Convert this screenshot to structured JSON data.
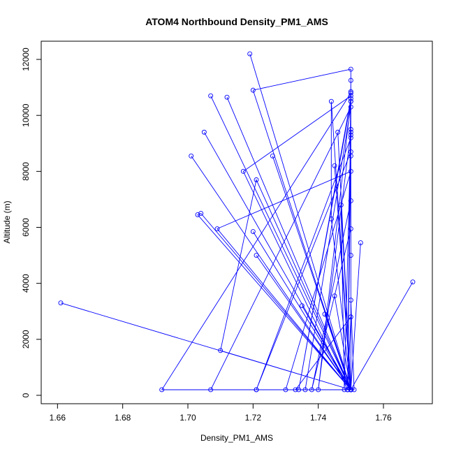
{
  "chart_data": {
    "type": "line",
    "title": "ATOM4 Northbound Density_PM1_AMS",
    "xlabel": "Density_PM1_AMS",
    "ylabel": "Altitude (m)",
    "xlim": [
      1.655,
      1.775
    ],
    "ylim": [
      -300,
      12650
    ],
    "xticks": [
      1.66,
      1.68,
      1.7,
      1.72,
      1.74,
      1.76
    ],
    "xtick_labels": [
      "1.66",
      "1.68",
      "1.70",
      "1.72",
      "1.74",
      "1.76"
    ],
    "yticks": [
      0,
      2000,
      4000,
      6000,
      8000,
      10000,
      12000
    ],
    "ytick_labels": [
      "0",
      "2000",
      "4000",
      "6000",
      "8000",
      "10000",
      "12000"
    ],
    "grid": false,
    "series_color": "#0000ff",
    "series": [
      {
        "x": [
          1.75,
          1.75,
          1.749,
          1.75,
          1.75,
          1.719,
          1.75,
          1.661,
          1.75,
          1.745,
          1.75,
          1.692,
          1.75,
          1.75,
          1.705,
          1.75,
          1.75,
          1.74,
          1.75,
          1.75,
          1.704,
          1.703,
          1.75,
          1.701,
          1.75,
          1.75,
          1.75,
          1.721,
          1.71,
          1.75,
          1.75,
          1.717,
          1.749,
          1.75,
          1.75,
          1.75,
          1.738,
          1.75,
          1.75,
          1.721,
          1.75,
          1.747,
          1.748,
          1.75,
          1.75,
          1.745,
          1.75,
          1.712,
          1.75,
          1.742,
          1.75,
          1.735,
          1.75,
          1.707,
          1.75,
          1.707,
          1.75,
          1.736,
          1.75,
          1.709,
          1.75,
          1.73,
          1.75,
          1.75,
          1.734,
          1.75,
          1.749,
          1.75,
          1.721,
          1.721,
          1.75,
          1.75,
          1.744,
          1.744,
          1.75,
          1.753,
          1.75,
          1.72,
          1.75,
          1.769,
          1.75,
          1.751,
          1.75,
          1.75,
          1.75,
          1.72,
          1.75,
          1.749,
          1.75,
          1.733,
          1.75,
          1.726,
          1.75,
          1.75,
          1.75,
          1.746
        ],
        "y": [
          200,
          11250,
          200,
          10850,
          200,
          12200,
          200,
          3300,
          200,
          3550,
          200,
          200,
          10800,
          200,
          9400,
          200,
          10500,
          200,
          9400,
          200,
          6500,
          6450,
          200,
          8550,
          200,
          9300,
          200,
          7700,
          1600,
          200,
          10700,
          8000,
          200,
          8550,
          200,
          6950,
          200,
          5950,
          200,
          5000,
          200,
          6800,
          200,
          9500,
          200,
          8200,
          200,
          10650,
          200,
          2900,
          200,
          3200,
          200,
          10700,
          200,
          200,
          10300,
          200,
          200,
          5950,
          8000,
          200,
          200,
          10600,
          200,
          10500,
          200,
          8700,
          200,
          200,
          9200,
          200,
          6300,
          10500,
          200,
          5450,
          200,
          5850,
          200,
          4050,
          200,
          200,
          3400,
          200,
          11650,
          10900,
          200,
          200,
          2800,
          200,
          200,
          8550,
          200,
          5000,
          200,
          9400
        ]
      }
    ]
  }
}
